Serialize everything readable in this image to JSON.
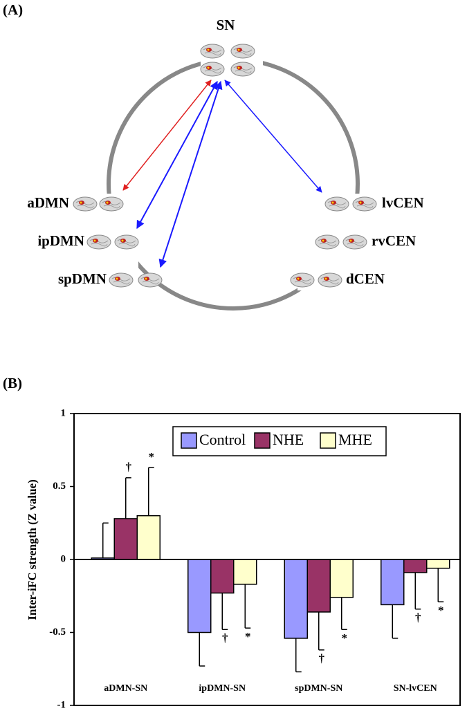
{
  "diagram": {
    "panel_label": "(A)",
    "nodes": [
      {
        "label": "SN"
      },
      {
        "label": "aDMN"
      },
      {
        "label": "ipDMN"
      },
      {
        "label": "spDMN"
      },
      {
        "label": "lvCEN"
      },
      {
        "label": "rvCEN"
      },
      {
        "label": "dCEN"
      }
    ]
  },
  "chart_data": {
    "type": "bar",
    "panel_label": "(B)",
    "y_label": "Inter-iFC strength (Z value)",
    "categories": [
      "aDMN-SN",
      "ipDMN-SN",
      "spDMN-SN",
      "SN-lvCEN"
    ],
    "series": [
      {
        "name": "Control",
        "color": "#9999ff",
        "values": [
          0.01,
          -0.5,
          -0.54,
          -0.31
        ],
        "errors": [
          0.24,
          0.23,
          0.23,
          0.23
        ],
        "markers": [
          null,
          null,
          null,
          null
        ]
      },
      {
        "name": "NHE",
        "color": "#993366",
        "values": [
          0.28,
          -0.23,
          -0.36,
          -0.09
        ],
        "errors": [
          0.28,
          0.25,
          0.26,
          0.25
        ],
        "markers": [
          "†",
          "†",
          "†",
          "†"
        ]
      },
      {
        "name": "MHE",
        "color": "#ffffcc",
        "values": [
          0.3,
          -0.17,
          -0.26,
          -0.06
        ],
        "errors": [
          0.33,
          0.3,
          0.22,
          0.23
        ],
        "markers": [
          "*",
          "*",
          "*",
          "*"
        ]
      }
    ],
    "ylim": [
      -1,
      1
    ],
    "yticks": [
      -1,
      -0.5,
      0,
      0.5,
      1
    ]
  }
}
